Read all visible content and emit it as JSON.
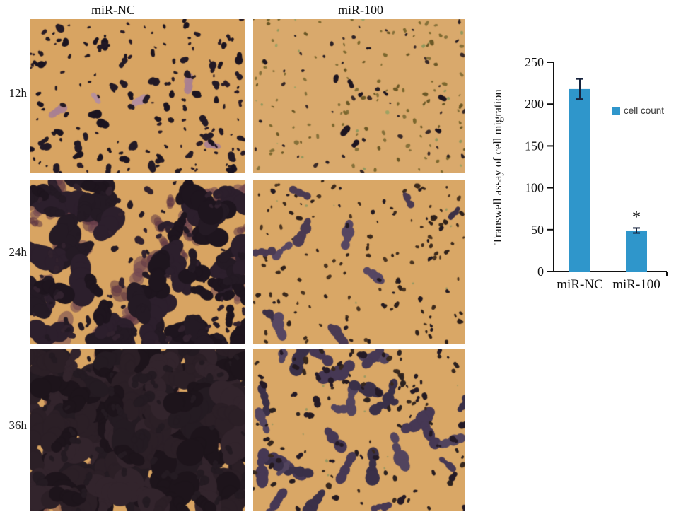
{
  "figure": {
    "columns": [
      {
        "label": "miR-NC"
      },
      {
        "label": "miR-100"
      }
    ],
    "rows": [
      {
        "label": "12h"
      },
      {
        "label": "24h"
      },
      {
        "label": "36h"
      }
    ],
    "panels": [
      {
        "id": "12h miR-NC",
        "seed": 11,
        "bg": "#d8a462",
        "layers": [
          {
            "count": 5,
            "rmin": 5,
            "rmax": 10,
            "colors": [
              "#a97f92",
              "#b58fa0"
            ],
            "alpha": 0.9,
            "lobes": 4,
            "stretch": 0.9
          },
          {
            "count": 115,
            "rmin": 1.5,
            "rmax": 4,
            "colors": [
              "#1b1420",
              "#2a1c26",
              "#241a22"
            ],
            "lobes": 2,
            "stretch": 0.4
          },
          {
            "count": 55,
            "rmin": 3.5,
            "rmax": 7,
            "colors": [
              "#1b1420",
              "#231a26"
            ],
            "lobes": 3,
            "stretch": 0.5
          }
        ]
      },
      {
        "id": "12h miR-100",
        "seed": 22,
        "bg": "#d9a96c",
        "layers": [
          {
            "count": 120,
            "rmin": 1.5,
            "rmax": 3.5,
            "colors": [
              "#7c682e",
              "#6b5826",
              "#86713a"
            ],
            "lobes": 2,
            "stretch": 0.3
          },
          {
            "count": 45,
            "rmin": 1.5,
            "rmax": 3.5,
            "colors": [
              "#2b2126",
              "#3a2a28"
            ],
            "lobes": 2,
            "stretch": 0.3
          },
          {
            "count": 22,
            "rmin": 1.5,
            "rmax": 3,
            "colors": [
              "#97a263",
              "#88975c"
            ],
            "alpha": 0.9,
            "lobes": 1,
            "stretch": 0
          },
          {
            "count": 10,
            "rmin": 3,
            "rmax": 6,
            "colors": [
              "#1d1520"
            ],
            "lobes": 2,
            "stretch": 0.4
          }
        ]
      },
      {
        "id": "24h miR-NC",
        "seed": 33,
        "bg": "#d8a462",
        "layers": [
          {
            "count": 45,
            "rmin": 6,
            "rmax": 16,
            "colors": [
              "#5f3644",
              "#6d4350"
            ],
            "alpha": 0.55,
            "lobes": 4,
            "stretch": 0.8
          },
          {
            "count": 75,
            "rmin": 8,
            "rmax": 22,
            "colors": [
              "#241a24",
              "#2c1f2c",
              "#1e151e"
            ],
            "lobes": 4,
            "stretch": 0.9
          },
          {
            "count": 90,
            "rmin": 2.5,
            "rmax": 6,
            "colors": [
              "#241a24",
              "#31222e"
            ],
            "lobes": 2,
            "stretch": 0.4
          }
        ]
      },
      {
        "id": "24h miR-100",
        "seed": 44,
        "bg": "#d9a766",
        "layers": [
          {
            "count": 120,
            "rmin": 1.8,
            "rmax": 4,
            "colors": [
              "#3c2a1c",
              "#2e201a",
              "#4a3420"
            ],
            "lobes": 2,
            "stretch": 0.3
          },
          {
            "count": 11,
            "rmin": 5,
            "rmax": 11,
            "colors": [
              "#4a3a52",
              "#3c3046",
              "#564662"
            ],
            "lobes": 4,
            "stretch": 1.4
          },
          {
            "count": 8,
            "rmin": 1.5,
            "rmax": 2.5,
            "colors": [
              "#8a9660"
            ],
            "alpha": 0.85,
            "lobes": 1,
            "stretch": 0
          },
          {
            "count": 25,
            "rmin": 2,
            "rmax": 4,
            "colors": [
              "#221a22"
            ],
            "lobes": 2,
            "stretch": 0.3
          }
        ]
      },
      {
        "id": "36h miR-NC",
        "seed": 55,
        "bg": "#d8a462",
        "layers": [
          {
            "count": 60,
            "rmin": 6,
            "rmax": 14,
            "colors": [
              "#8a5a48",
              "#7a4a44"
            ],
            "alpha": 0.6,
            "lobes": 3,
            "stretch": 0.7
          },
          {
            "count": 210,
            "rmin": 9,
            "rmax": 24,
            "colors": [
              "#241b22",
              "#2b1f26",
              "#1d141b",
              "#32242c"
            ],
            "lobes": 4,
            "stretch": 0.9
          },
          {
            "count": 60,
            "rmin": 3,
            "rmax": 7,
            "colors": [
              "#241b22"
            ],
            "lobes": 2,
            "stretch": 0.4
          }
        ]
      },
      {
        "id": "36h miR-100",
        "seed": 66,
        "bg": "#d9a766",
        "layers": [
          {
            "count": 30,
            "rmin": 6,
            "rmax": 15,
            "colors": [
              "#463854",
              "#3a3048",
              "#52445e"
            ],
            "lobes": 4,
            "stretch": 1.5
          },
          {
            "count": 26,
            "rmin": 3,
            "rmax": 6,
            "colors": [
              "#241a26"
            ],
            "lobes": 2,
            "stretch": 0.5
          },
          {
            "count": 85,
            "rmin": 2,
            "rmax": 4.5,
            "colors": [
              "#241a20",
              "#38281e",
              "#2c2220"
            ],
            "lobes": 2,
            "stretch": 0.3
          },
          {
            "count": 12,
            "rmin": 1.5,
            "rmax": 2.5,
            "colors": [
              "#8a9660"
            ],
            "alpha": 0.8,
            "lobes": 1,
            "stretch": 0
          }
        ]
      }
    ]
  },
  "chart_data": {
    "type": "bar",
    "title": "",
    "ylabel": "Transwell assay of cell migration",
    "xlabel": "",
    "categories": [
      "miR-NC",
      "miR-100"
    ],
    "series": [
      {
        "name": "cell count",
        "values": [
          218,
          49
        ],
        "errors": [
          12,
          3
        ],
        "color": "#2f96cb"
      }
    ],
    "ylim": [
      0,
      250
    ],
    "yticks": [
      0,
      50,
      100,
      150,
      200,
      250
    ],
    "grid": false,
    "legend": {
      "label": "cell count",
      "swatch_color": "#2f96cb",
      "position": "inside-upper-right"
    },
    "annotations": [
      {
        "category": "miR-100",
        "text": "*"
      }
    ],
    "error_bar_color": "#17233d"
  }
}
